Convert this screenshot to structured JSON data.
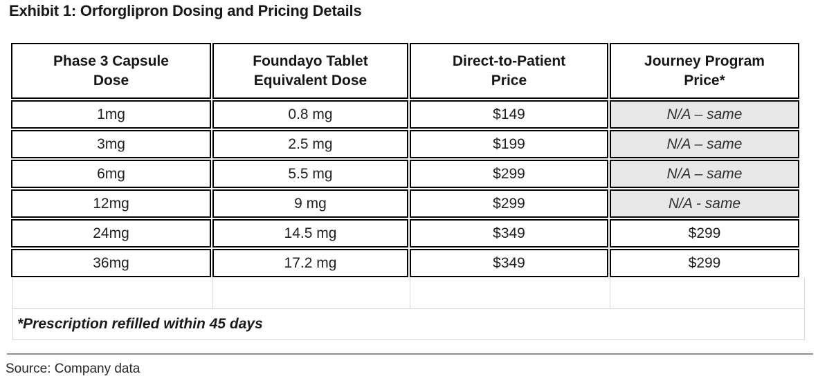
{
  "title": "Exhibit 1: Orforglipron Dosing and Pricing Details",
  "table": {
    "headers": [
      "Phase 3 Capsule\nDose",
      "Foundayo Tablet\nEquivalent Dose",
      "Direct-to-Patient\nPrice",
      "Journey Program\nPrice*"
    ],
    "rows": [
      {
        "dose": "1mg",
        "equivalent": "0.8 mg",
        "dtp_price": "$149",
        "journey_price": "N/A – same"
      },
      {
        "dose": "3mg",
        "equivalent": "2.5 mg",
        "dtp_price": "$199",
        "journey_price": "N/A – same"
      },
      {
        "dose": "6mg",
        "equivalent": "5.5 mg",
        "dtp_price": "$299",
        "journey_price": "N/A – same"
      },
      {
        "dose": "12mg",
        "equivalent": "9 mg",
        "dtp_price": "$299",
        "journey_price": "N/A - same"
      },
      {
        "dose": "24mg",
        "equivalent": "14.5 mg",
        "dtp_price": "$349",
        "journey_price": "$299"
      },
      {
        "dose": "36mg",
        "equivalent": "17.2 mg",
        "dtp_price": "$349",
        "journey_price": "$299"
      }
    ],
    "footnote": "*Prescription refilled within 45 days"
  },
  "source": "Source: Company data",
  "colors": {
    "table_border": "#000000",
    "na_cell_bg": "#e7e7e7",
    "gridline": "#d9d9d9",
    "divider": "#8f8f8f",
    "text": "#1f1f1f"
  }
}
